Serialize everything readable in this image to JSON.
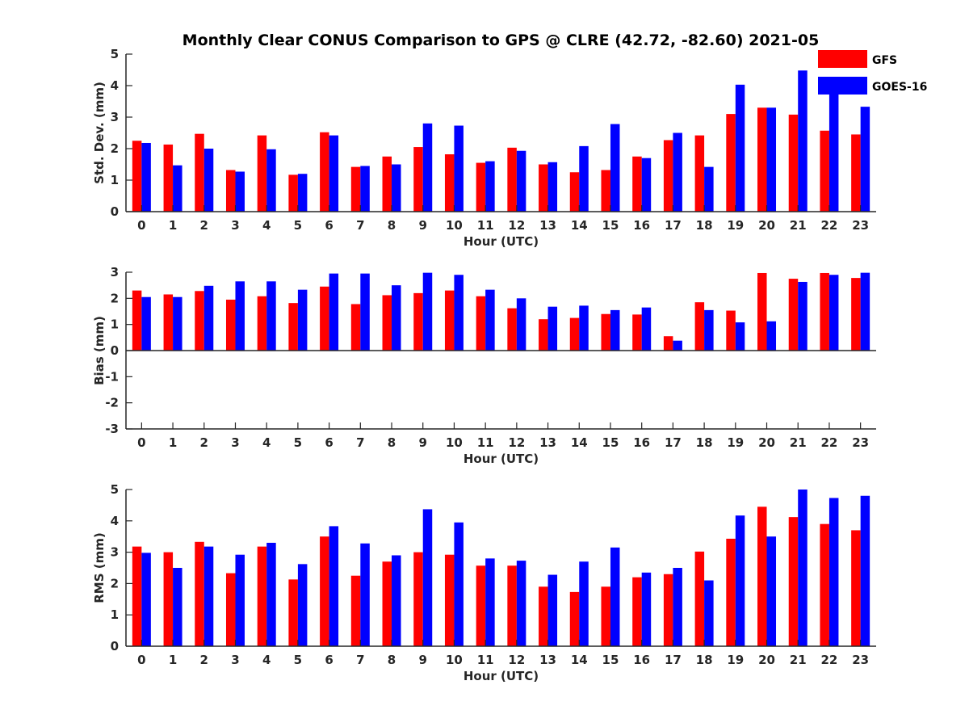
{
  "figure": {
    "title": "Monthly Clear CONUS Comparison to GPS @ CLRE (42.72, -82.60) 2021-05"
  },
  "legend": [
    {
      "name": "GFS",
      "color": "#ff0000"
    },
    {
      "name": "GOES-16",
      "color": "#0000ff"
    }
  ],
  "chart_data": [
    {
      "type": "bar",
      "ylabel": "Std. Dev. (mm)",
      "xlabel": "Hour (UTC)",
      "ylim": [
        0,
        5
      ],
      "yticks": [
        0,
        1,
        2,
        3,
        4,
        5
      ],
      "grid": false,
      "legend_position": "top-right",
      "categories": [
        "0",
        "1",
        "2",
        "3",
        "4",
        "5",
        "6",
        "7",
        "8",
        "9",
        "10",
        "11",
        "12",
        "13",
        "14",
        "15",
        "16",
        "17",
        "18",
        "19",
        "20",
        "21",
        "22",
        "23"
      ],
      "series": [
        {
          "name": "GFS",
          "color": "#ff0000",
          "values": [
            2.25,
            2.13,
            2.47,
            1.32,
            2.42,
            1.17,
            2.52,
            1.42,
            1.75,
            2.05,
            1.82,
            1.55,
            2.03,
            1.5,
            1.25,
            1.32,
            1.75,
            2.27,
            2.42,
            3.1,
            3.3,
            3.08,
            2.57,
            2.45
          ]
        },
        {
          "name": "GOES-16",
          "color": "#0000ff",
          "values": [
            2.18,
            1.47,
            2.0,
            1.27,
            1.98,
            1.2,
            2.42,
            1.45,
            1.5,
            2.8,
            2.73,
            1.6,
            1.93,
            1.57,
            2.08,
            2.78,
            1.7,
            2.5,
            1.42,
            4.03,
            3.3,
            4.48,
            3.75,
            3.33
          ]
        }
      ]
    },
    {
      "type": "bar",
      "ylabel": "Bias (mm)",
      "xlabel": "Hour (UTC)",
      "ylim": [
        -3,
        3
      ],
      "yticks": [
        -3,
        -2,
        -1,
        0,
        1,
        2,
        3
      ],
      "grid": false,
      "categories": [
        "0",
        "1",
        "2",
        "3",
        "4",
        "5",
        "6",
        "7",
        "8",
        "9",
        "10",
        "11",
        "12",
        "13",
        "14",
        "15",
        "16",
        "17",
        "18",
        "19",
        "20",
        "21",
        "22",
        "23"
      ],
      "series": [
        {
          "name": "GFS",
          "color": "#ff0000",
          "values": [
            2.3,
            2.15,
            2.28,
            1.95,
            2.08,
            1.82,
            2.45,
            1.78,
            2.12,
            2.2,
            2.3,
            2.08,
            1.62,
            1.2,
            1.25,
            1.4,
            1.38,
            0.55,
            1.85,
            1.53,
            2.97,
            2.75,
            2.97,
            2.78
          ]
        },
        {
          "name": "GOES-16",
          "color": "#0000ff",
          "values": [
            2.05,
            2.05,
            2.48,
            2.65,
            2.65,
            2.33,
            2.95,
            2.95,
            2.5,
            2.98,
            2.9,
            2.33,
            2.0,
            1.68,
            1.72,
            1.55,
            1.65,
            0.38,
            1.55,
            1.08,
            1.12,
            2.63,
            2.9,
            2.98
          ]
        }
      ]
    },
    {
      "type": "bar",
      "ylabel": "RMS (mm)",
      "xlabel": "Hour (UTC)",
      "ylim": [
        0,
        5
      ],
      "yticks": [
        0,
        1,
        2,
        3,
        4,
        5
      ],
      "grid": false,
      "categories": [
        "0",
        "1",
        "2",
        "3",
        "4",
        "5",
        "6",
        "7",
        "8",
        "9",
        "10",
        "11",
        "12",
        "13",
        "14",
        "15",
        "16",
        "17",
        "18",
        "19",
        "20",
        "21",
        "22",
        "23"
      ],
      "series": [
        {
          "name": "GFS",
          "color": "#ff0000",
          "values": [
            3.18,
            3.0,
            3.33,
            2.33,
            3.18,
            2.13,
            3.5,
            2.25,
            2.7,
            3.0,
            2.92,
            2.57,
            2.57,
            1.9,
            1.73,
            1.9,
            2.2,
            2.3,
            3.02,
            3.43,
            4.45,
            4.12,
            3.9,
            3.7
          ]
        },
        {
          "name": "GOES-16",
          "color": "#0000ff",
          "values": [
            2.98,
            2.5,
            3.18,
            2.92,
            3.3,
            2.62,
            3.83,
            3.28,
            2.9,
            4.37,
            3.95,
            2.8,
            2.73,
            2.28,
            2.7,
            3.15,
            2.35,
            2.5,
            2.1,
            4.17,
            3.5,
            5.0,
            4.73,
            4.8
          ]
        }
      ]
    }
  ]
}
